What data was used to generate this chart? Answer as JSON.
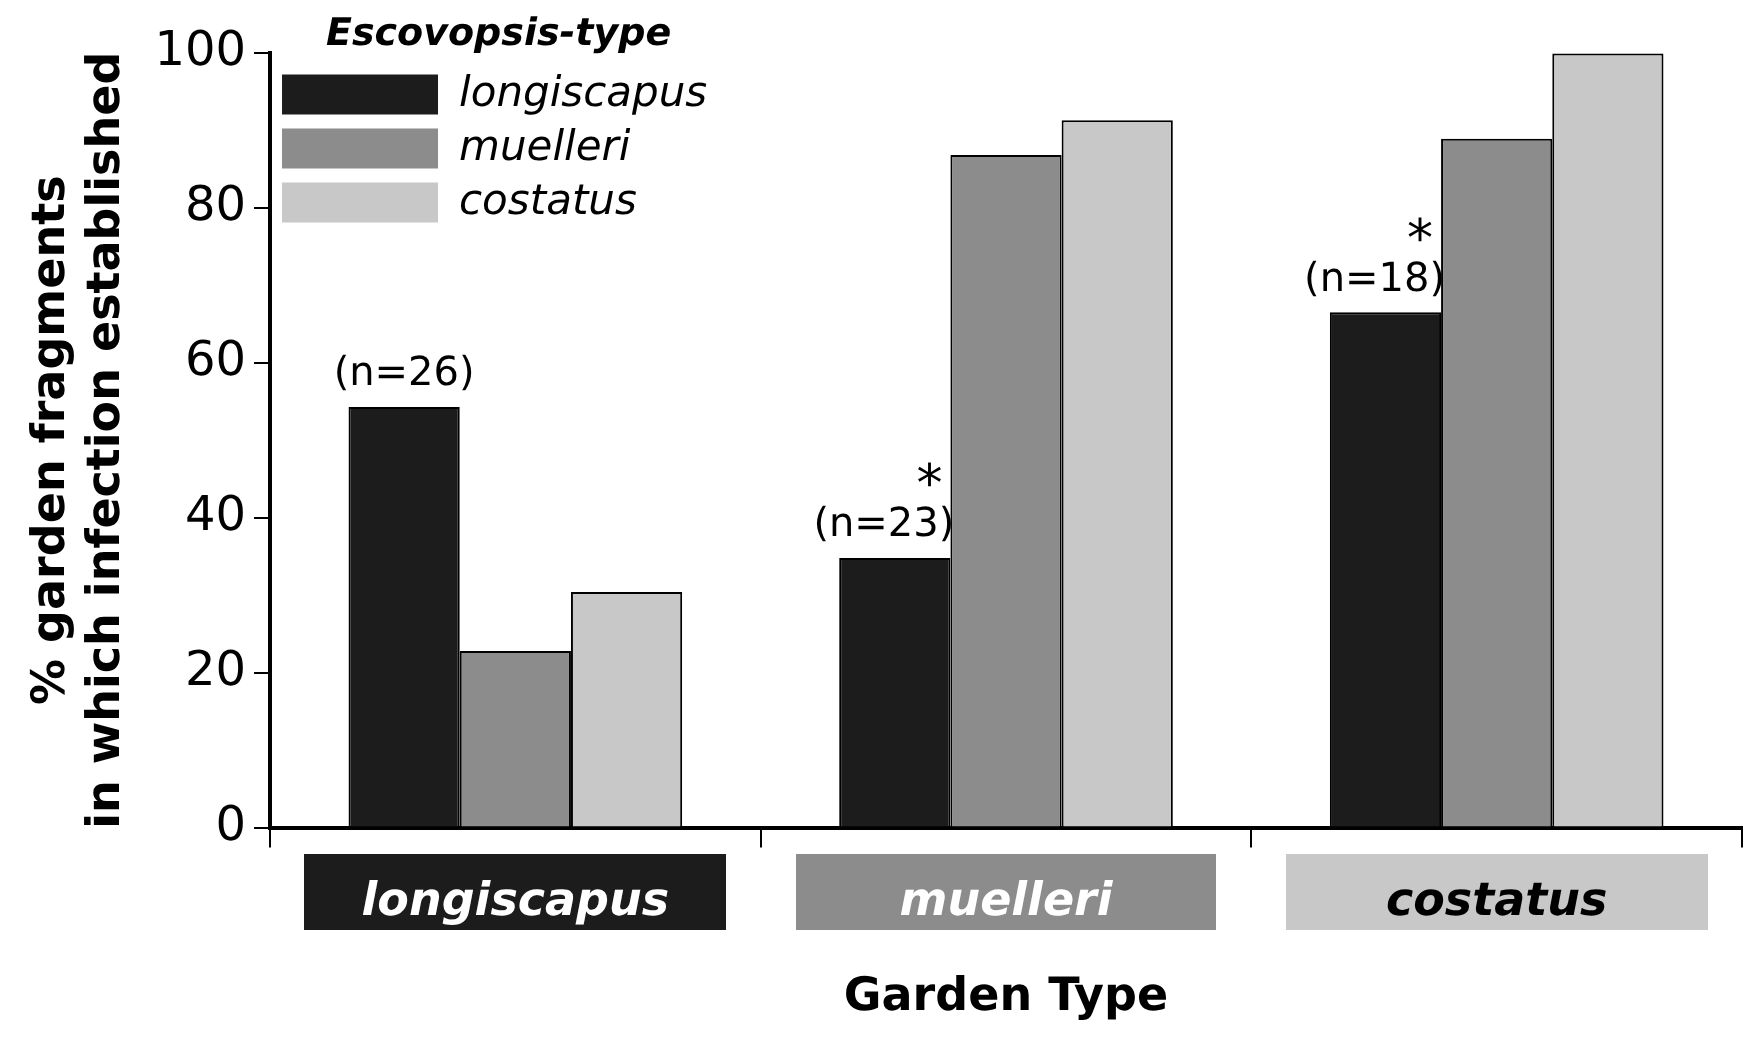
{
  "chart_data": {
    "type": "bar",
    "xlabel": "Garden Type",
    "ylabel": "% garden fragments\nin which infection established",
    "legend_title": "Escovopsis-type",
    "categories": [
      "longiscapus",
      "muelleri",
      "costatus"
    ],
    "series": [
      {
        "name": "longiscapus",
        "color": "#1c1c1c",
        "values": [
          54.3,
          34.8,
          66.5
        ]
      },
      {
        "name": "muelleri",
        "color": "#8c8c8c",
        "values": [
          22.8,
          86.8,
          88.9
        ]
      },
      {
        "name": "costatus",
        "color": "#c8c8c8",
        "values": [
          30.4,
          91.3,
          99.9
        ]
      }
    ],
    "ylim": [
      0,
      100
    ],
    "yticks": [
      0,
      20,
      40,
      60,
      80,
      100
    ],
    "grid": false,
    "legend": "top left",
    "annotations": [
      "(n=26)",
      "*",
      "(n=23)",
      "*",
      "(n=18)"
    ]
  }
}
